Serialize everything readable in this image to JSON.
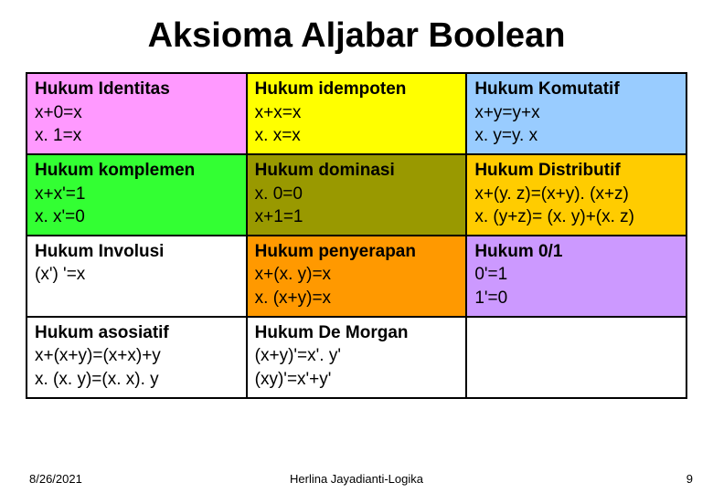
{
  "title": "Aksioma Aljabar Boolean",
  "colors": {
    "row1c1": "#ff99ff",
    "row1c2": "#ffff00",
    "row1c3": "#99ccff",
    "row2c1": "#33ff33",
    "row2c2": "#999900",
    "row2c3": "#ffcc00",
    "row3c1": "#ffffff",
    "row3c2": "#ff9900",
    "row3c3": "#cc99ff",
    "row4c1": "#ffffff",
    "row4c2": "#ffffff",
    "row4c3": "#ffffff"
  },
  "cells": {
    "r1c1": {
      "name": "Hukum Identitas",
      "l1": "x+0=x",
      "l2": "x. 1=x"
    },
    "r1c2": {
      "name": "Hukum idempoten",
      "l1": "x+x=x",
      "l2": "x. x=x"
    },
    "r1c3": {
      "name": "Hukum Komutatif",
      "l1": "x+y=y+x",
      "l2": "x. y=y. x"
    },
    "r2c1": {
      "name": "Hukum komplemen",
      "l1": "x+x'=1",
      "l2": "x. x'=0"
    },
    "r2c2": {
      "name": "Hukum dominasi",
      "l1": "x. 0=0",
      "l2": "x+1=1"
    },
    "r2c3": {
      "name": "Hukum Distributif",
      "l1": "x+(y. z)=(x+y). (x+z)",
      "l2": "x. (y+z)= (x. y)+(x. z)"
    },
    "r3c1": {
      "name": "Hukum Involusi",
      "l1": "(x') '=x",
      "l2": ""
    },
    "r3c2": {
      "name": "Hukum penyerapan",
      "l1": "x+(x. y)=x",
      "l2": "x. (x+y)=x"
    },
    "r3c3": {
      "name": "Hukum 0/1",
      "l1": "0'=1",
      "l2": "1'=0"
    },
    "r4c1": {
      "name": "Hukum asosiatif",
      "l1": "x+(x+y)=(x+x)+y",
      "l2": "x. (x. y)=(x. x). y"
    },
    "r4c2": {
      "name": "Hukum De Morgan",
      "l1": "(x+y)'=x'. y'",
      "l2": "(xy)'=x'+y'"
    },
    "r4c3": {
      "name": "",
      "l1": "",
      "l2": ""
    }
  },
  "footer": {
    "date": "8/26/2021",
    "author": "Herlina Jayadianti-Logika",
    "page": "9"
  }
}
